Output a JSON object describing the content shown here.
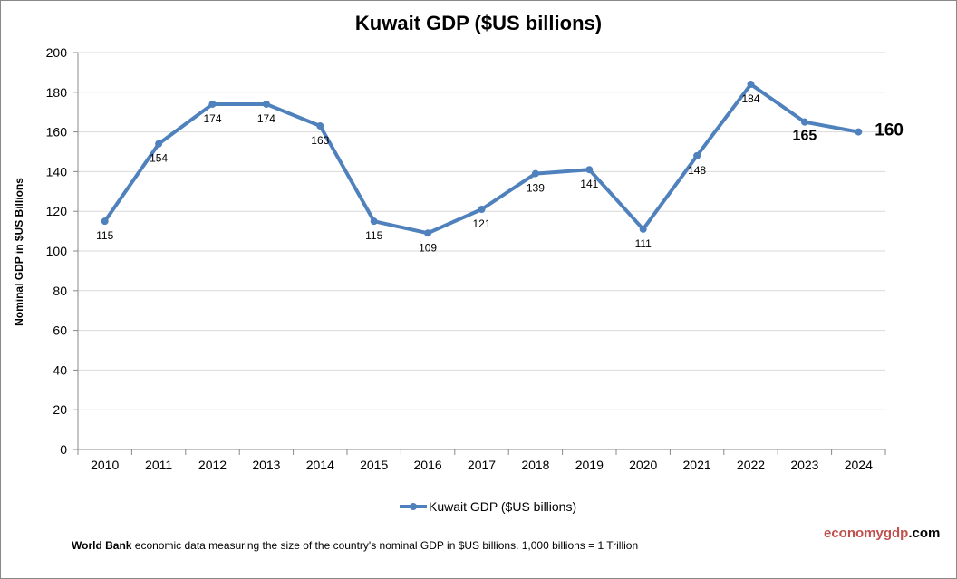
{
  "chart_data": {
    "type": "line",
    "title": "Kuwait GDP ($US billions)",
    "ylabel": "Nominal GDP in $US  Billions",
    "xlabel": "",
    "categories": [
      "2010",
      "2011",
      "2012",
      "2013",
      "2014",
      "2015",
      "2016",
      "2017",
      "2018",
      "2019",
      "2020",
      "2021",
      "2022",
      "2023",
      "2024"
    ],
    "series": [
      {
        "name": "Kuwait GDP ($US billions)",
        "values": [
          115,
          154,
          174,
          174,
          163,
          115,
          109,
          121,
          139,
          141,
          111,
          148,
          184,
          165,
          160
        ],
        "color": "#4f81bd"
      }
    ],
    "data_labels": [
      "115",
      "154",
      "174",
      "174",
      "163",
      "115",
      "109",
      "121",
      "139",
      "141",
      "111",
      "148",
      "184",
      "165",
      "160"
    ],
    "ylim": [
      0,
      200
    ],
    "yticks": [
      "0",
      "20",
      "40",
      "60",
      "80",
      "100",
      "120",
      "140",
      "160",
      "180",
      "200"
    ],
    "grid": true,
    "legend": "bottom"
  },
  "footer": {
    "source_bold": "World Bank",
    "source_text": " economic data  measuring the size of the country's nominal GDP in $US billions. 1,000 billions = 1 Trillion",
    "brand_a": "economy",
    "brand_b": "gdp",
    "brand_c": ".com",
    "brand_color": "#c0504d"
  }
}
